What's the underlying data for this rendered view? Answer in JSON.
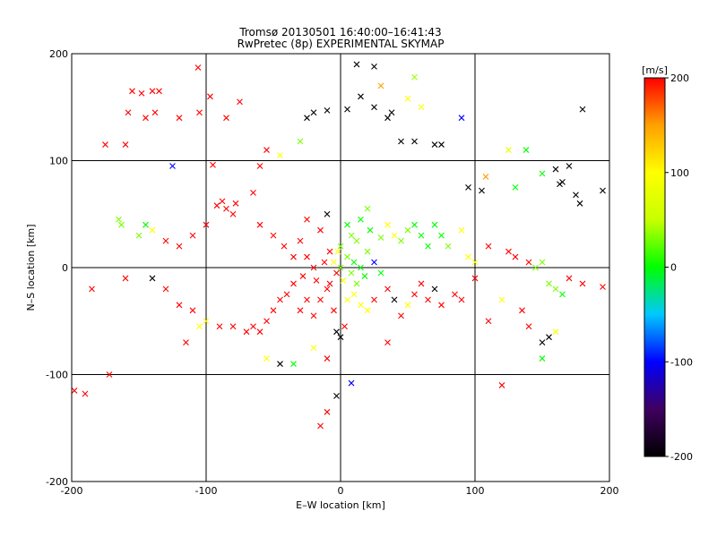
{
  "chart_data": {
    "type": "scatter",
    "title": "Tromsø 20130501 16:40:00–16:41:43",
    "subtitle": "RwPretec (8p) EXPERIMENTAL SKYMAP",
    "xlabel": "E–W location [km]",
    "ylabel": "N–S location [km]",
    "xlim": [
      -200,
      200
    ],
    "ylim": [
      -200,
      200
    ],
    "xticks": [
      -200,
      -100,
      0,
      100,
      200
    ],
    "yticks": [
      -200,
      -100,
      0,
      100,
      200
    ],
    "xtick_labels": [
      "-200",
      "-100",
      "0",
      "100",
      "200"
    ],
    "ytick_labels": [
      "-200",
      "-100",
      "0",
      "100",
      "200"
    ],
    "grid": true,
    "colorbar": {
      "label": "[m/s]",
      "min": -200,
      "max": 200,
      "ticks": [
        200,
        100,
        0,
        -100,
        -200
      ],
      "tick_labels": [
        "200",
        "100",
        "0",
        "-100",
        "-200"
      ],
      "colormap": [
        "#000000",
        "#400060",
        "#0000ff",
        "#00c8ff",
        "#00ff00",
        "#c8ff00",
        "#ffff00",
        "#ffa000",
        "#ff0000"
      ]
    },
    "markers": {
      "cross": "meteor detection (x)",
      "dot": "meteor detection (dot)"
    },
    "points": [
      {
        "x": -155,
        "y": 165,
        "v": 200,
        "m": "x"
      },
      {
        "x": -148,
        "y": 163,
        "v": 200,
        "m": "x"
      },
      {
        "x": -140,
        "y": 165,
        "v": 200,
        "m": "x"
      },
      {
        "x": -135,
        "y": 165,
        "v": 200,
        "m": "x"
      },
      {
        "x": -158,
        "y": 145,
        "v": 200,
        "m": "x"
      },
      {
        "x": -145,
        "y": 140,
        "v": 200,
        "m": "x"
      },
      {
        "x": -138,
        "y": 145,
        "v": 200,
        "m": "x"
      },
      {
        "x": -120,
        "y": 140,
        "v": 200,
        "m": "x"
      },
      {
        "x": -105,
        "y": 145,
        "v": 200,
        "m": "x"
      },
      {
        "x": -97,
        "y": 160,
        "v": 200,
        "m": "x"
      },
      {
        "x": -106,
        "y": 187,
        "v": 200,
        "m": "x"
      },
      {
        "x": -85,
        "y": 140,
        "v": 200,
        "m": "x"
      },
      {
        "x": -75,
        "y": 155,
        "v": 200,
        "m": "x"
      },
      {
        "x": -175,
        "y": 115,
        "v": 200,
        "m": "x"
      },
      {
        "x": -160,
        "y": 115,
        "v": 200,
        "m": "x"
      },
      {
        "x": -125,
        "y": 95,
        "v": -100,
        "m": "x"
      },
      {
        "x": -95,
        "y": 96,
        "v": 200,
        "m": "x"
      },
      {
        "x": -60,
        "y": 95,
        "v": 200,
        "m": "x"
      },
      {
        "x": -55,
        "y": 110,
        "v": 200,
        "m": "x"
      },
      {
        "x": -45,
        "y": 105,
        "v": 100,
        "m": "x"
      },
      {
        "x": -30,
        "y": 118,
        "v": 30,
        "m": "x"
      },
      {
        "x": -25,
        "y": 140,
        "v": -200,
        "m": "x"
      },
      {
        "x": -20,
        "y": 145,
        "v": -200,
        "m": "x"
      },
      {
        "x": -10,
        "y": 147,
        "v": -200,
        "m": "x"
      },
      {
        "x": 5,
        "y": 148,
        "v": -200,
        "m": "x"
      },
      {
        "x": 15,
        "y": 160,
        "v": -200,
        "m": "x"
      },
      {
        "x": 25,
        "y": 150,
        "v": -200,
        "m": "x"
      },
      {
        "x": 35,
        "y": 140,
        "v": -200,
        "m": "x"
      },
      {
        "x": 38,
        "y": 145,
        "v": -200,
        "m": "x"
      },
      {
        "x": 12,
        "y": 190,
        "v": -200,
        "m": "x"
      },
      {
        "x": 25,
        "y": 188,
        "v": -200,
        "m": "x"
      },
      {
        "x": 30,
        "y": 170,
        "v": 150,
        "m": "x"
      },
      {
        "x": 50,
        "y": 158,
        "v": 100,
        "m": "x"
      },
      {
        "x": 55,
        "y": 178,
        "v": 40,
        "m": "x"
      },
      {
        "x": 60,
        "y": 150,
        "v": 100,
        "m": "x"
      },
      {
        "x": 45,
        "y": 118,
        "v": -200,
        "m": "x"
      },
      {
        "x": 55,
        "y": 118,
        "v": -200,
        "m": "x"
      },
      {
        "x": 70,
        "y": 115,
        "v": -200,
        "m": "x"
      },
      {
        "x": 75,
        "y": 115,
        "v": -200,
        "m": "x"
      },
      {
        "x": 90,
        "y": 140,
        "v": -100,
        "m": "x"
      },
      {
        "x": 125,
        "y": 110,
        "v": 80,
        "m": "x"
      },
      {
        "x": 138,
        "y": 110,
        "v": 0,
        "m": "x"
      },
      {
        "x": 160,
        "y": 92,
        "v": -200,
        "m": "x"
      },
      {
        "x": 170,
        "y": 95,
        "v": -200,
        "m": "x"
      },
      {
        "x": 165,
        "y": 80,
        "v": -200,
        "m": "x"
      },
      {
        "x": 175,
        "y": 68,
        "v": -200,
        "m": "x"
      },
      {
        "x": 163,
        "y": 78,
        "v": -200,
        "m": "x"
      },
      {
        "x": 180,
        "y": 148,
        "v": -200,
        "m": "x"
      },
      {
        "x": 195,
        "y": 72,
        "v": -200,
        "m": "x"
      },
      {
        "x": 150,
        "y": 88,
        "v": 0,
        "m": "x"
      },
      {
        "x": 130,
        "y": 75,
        "v": 0,
        "m": "x"
      },
      {
        "x": 108,
        "y": 85,
        "v": 150,
        "m": "x"
      },
      {
        "x": 105,
        "y": 72,
        "v": -200,
        "m": "x"
      },
      {
        "x": 95,
        "y": 75,
        "v": -200,
        "m": "x"
      },
      {
        "x": 178,
        "y": 60,
        "v": -200,
        "m": "x"
      },
      {
        "x": -165,
        "y": 45,
        "v": 30,
        "m": "x"
      },
      {
        "x": -163,
        "y": 40,
        "v": 30,
        "m": "x"
      },
      {
        "x": -150,
        "y": 30,
        "v": 30,
        "m": "x"
      },
      {
        "x": -145,
        "y": 40,
        "v": 0,
        "m": "x"
      },
      {
        "x": -140,
        "y": 35,
        "v": 100,
        "m": "x"
      },
      {
        "x": -130,
        "y": 25,
        "v": 200,
        "m": "x"
      },
      {
        "x": -120,
        "y": 20,
        "v": 200,
        "m": "x"
      },
      {
        "x": -110,
        "y": 30,
        "v": 200,
        "m": "x"
      },
      {
        "x": -100,
        "y": 40,
        "v": 200,
        "m": "x"
      },
      {
        "x": -92,
        "y": 58,
        "v": 200,
        "m": "x"
      },
      {
        "x": -88,
        "y": 62,
        "v": 200,
        "m": "x"
      },
      {
        "x": -85,
        "y": 55,
        "v": 200,
        "m": "x"
      },
      {
        "x": -80,
        "y": 50,
        "v": 200,
        "m": "x"
      },
      {
        "x": -78,
        "y": 60,
        "v": 200,
        "m": "x"
      },
      {
        "x": -65,
        "y": 70,
        "v": 200,
        "m": "x"
      },
      {
        "x": -60,
        "y": 40,
        "v": 200,
        "m": "x"
      },
      {
        "x": -50,
        "y": 30,
        "v": 200,
        "m": "x"
      },
      {
        "x": -42,
        "y": 20,
        "v": 200,
        "m": "x"
      },
      {
        "x": -35,
        "y": 10,
        "v": 200,
        "m": "x"
      },
      {
        "x": -30,
        "y": 25,
        "v": 200,
        "m": "x"
      },
      {
        "x": -25,
        "y": 45,
        "v": 200,
        "m": "x"
      },
      {
        "x": -15,
        "y": 35,
        "v": 200,
        "m": "x"
      },
      {
        "x": -10,
        "y": 50,
        "v": -200,
        "m": "x"
      },
      {
        "x": -8,
        "y": 15,
        "v": 200,
        "m": "x"
      },
      {
        "x": -5,
        "y": 5,
        "v": 100,
        "m": "x"
      },
      {
        "x": -3,
        "y": -5,
        "v": 200,
        "m": "x"
      },
      {
        "x": 0,
        "y": 20,
        "v": 30,
        "m": "x"
      },
      {
        "x": 5,
        "y": 40,
        "v": 0,
        "m": "x"
      },
      {
        "x": 8,
        "y": 30,
        "v": 30,
        "m": "x"
      },
      {
        "x": 12,
        "y": 25,
        "v": 30,
        "m": "x"
      },
      {
        "x": 15,
        "y": 45,
        "v": 0,
        "m": "x"
      },
      {
        "x": 20,
        "y": 55,
        "v": 30,
        "m": "x"
      },
      {
        "x": 22,
        "y": 35,
        "v": 0,
        "m": "x"
      },
      {
        "x": 30,
        "y": 28,
        "v": 30,
        "m": "x"
      },
      {
        "x": 35,
        "y": 40,
        "v": 100,
        "m": "x"
      },
      {
        "x": 40,
        "y": 30,
        "v": 100,
        "m": "x"
      },
      {
        "x": 45,
        "y": 25,
        "v": 30,
        "m": "x"
      },
      {
        "x": 50,
        "y": 35,
        "v": 30,
        "m": "x"
      },
      {
        "x": 55,
        "y": 40,
        "v": 0,
        "m": "x"
      },
      {
        "x": 60,
        "y": 30,
        "v": 0,
        "m": "x"
      },
      {
        "x": 65,
        "y": 20,
        "v": 0,
        "m": "x"
      },
      {
        "x": 70,
        "y": 40,
        "v": 0,
        "m": "x"
      },
      {
        "x": 75,
        "y": 30,
        "v": 0,
        "m": "x"
      },
      {
        "x": 80,
        "y": 20,
        "v": 30,
        "m": "x"
      },
      {
        "x": 90,
        "y": 35,
        "v": 100,
        "m": "x"
      },
      {
        "x": 95,
        "y": 10,
        "v": 100,
        "m": "x"
      },
      {
        "x": 100,
        "y": 5,
        "v": 100,
        "m": "x"
      },
      {
        "x": 110,
        "y": 20,
        "v": 200,
        "m": "x"
      },
      {
        "x": 125,
        "y": 15,
        "v": 200,
        "m": "x"
      },
      {
        "x": 130,
        "y": 10,
        "v": 200,
        "m": "x"
      },
      {
        "x": 140,
        "y": 5,
        "v": 200,
        "m": "x"
      },
      {
        "x": 145,
        "y": 0,
        "v": 30,
        "m": "x"
      },
      {
        "x": 150,
        "y": 5,
        "v": 30,
        "m": "x"
      },
      {
        "x": 155,
        "y": -15,
        "v": 30,
        "m": "x"
      },
      {
        "x": 160,
        "y": -20,
        "v": 30,
        "m": "x"
      },
      {
        "x": 165,
        "y": -25,
        "v": 0,
        "m": "x"
      },
      {
        "x": 170,
        "y": -10,
        "v": 200,
        "m": "x"
      },
      {
        "x": 180,
        "y": -15,
        "v": 200,
        "m": "x"
      },
      {
        "x": 195,
        "y": -18,
        "v": 200,
        "m": "x"
      },
      {
        "x": -185,
        "y": -20,
        "v": 200,
        "m": "x"
      },
      {
        "x": -160,
        "y": -10,
        "v": 200,
        "m": "x"
      },
      {
        "x": -140,
        "y": -10,
        "v": -200,
        "m": "x"
      },
      {
        "x": -130,
        "y": -20,
        "v": 200,
        "m": "x"
      },
      {
        "x": -120,
        "y": -35,
        "v": 200,
        "m": "x"
      },
      {
        "x": -110,
        "y": -40,
        "v": 200,
        "m": "x"
      },
      {
        "x": -100,
        "y": -50,
        "v": 100,
        "m": "x"
      },
      {
        "x": -90,
        "y": -55,
        "v": 200,
        "m": "x"
      },
      {
        "x": -80,
        "y": -55,
        "v": 200,
        "m": "x"
      },
      {
        "x": -70,
        "y": -60,
        "v": 200,
        "m": "x"
      },
      {
        "x": -65,
        "y": -55,
        "v": 200,
        "m": "x"
      },
      {
        "x": -60,
        "y": -60,
        "v": 200,
        "m": "x"
      },
      {
        "x": -55,
        "y": -50,
        "v": 200,
        "m": "x"
      },
      {
        "x": -50,
        "y": -40,
        "v": 200,
        "m": "x"
      },
      {
        "x": -45,
        "y": -30,
        "v": 200,
        "m": "x"
      },
      {
        "x": -40,
        "y": -25,
        "v": 200,
        "m": "x"
      },
      {
        "x": -35,
        "y": -15,
        "v": 200,
        "m": "x"
      },
      {
        "x": -30,
        "y": -40,
        "v": 200,
        "m": "x"
      },
      {
        "x": -25,
        "y": -30,
        "v": 200,
        "m": "x"
      },
      {
        "x": -20,
        "y": -45,
        "v": 200,
        "m": "x"
      },
      {
        "x": -15,
        "y": -30,
        "v": 200,
        "m": "x"
      },
      {
        "x": -10,
        "y": -20,
        "v": 200,
        "m": "x"
      },
      {
        "x": -5,
        "y": -40,
        "v": 200,
        "m": "x"
      },
      {
        "x": -3,
        "y": -60,
        "v": -200,
        "m": "x"
      },
      {
        "x": 0,
        "y": -65,
        "v": -200,
        "m": "x"
      },
      {
        "x": 3,
        "y": -55,
        "v": 200,
        "m": "x"
      },
      {
        "x": 5,
        "y": -30,
        "v": 100,
        "m": "x"
      },
      {
        "x": 10,
        "y": -25,
        "v": 100,
        "m": "x"
      },
      {
        "x": 15,
        "y": -35,
        "v": 100,
        "m": "x"
      },
      {
        "x": 20,
        "y": -40,
        "v": 100,
        "m": "x"
      },
      {
        "x": 25,
        "y": -30,
        "v": 200,
        "m": "x"
      },
      {
        "x": 35,
        "y": -20,
        "v": 200,
        "m": "x"
      },
      {
        "x": 40,
        "y": -30,
        "v": -200,
        "m": "x"
      },
      {
        "x": 45,
        "y": -45,
        "v": 200,
        "m": "x"
      },
      {
        "x": 50,
        "y": -35,
        "v": 100,
        "m": "x"
      },
      {
        "x": 55,
        "y": -25,
        "v": 200,
        "m": "x"
      },
      {
        "x": 60,
        "y": -15,
        "v": 200,
        "m": "x"
      },
      {
        "x": 65,
        "y": -30,
        "v": 200,
        "m": "x"
      },
      {
        "x": 70,
        "y": -20,
        "v": -200,
        "m": "x"
      },
      {
        "x": 75,
        "y": -35,
        "v": 200,
        "m": "x"
      },
      {
        "x": 85,
        "y": -25,
        "v": 200,
        "m": "x"
      },
      {
        "x": 90,
        "y": -30,
        "v": 200,
        "m": "x"
      },
      {
        "x": 100,
        "y": -10,
        "v": 200,
        "m": "x"
      },
      {
        "x": 110,
        "y": -50,
        "v": 200,
        "m": "x"
      },
      {
        "x": 120,
        "y": -30,
        "v": 100,
        "m": "x"
      },
      {
        "x": 135,
        "y": -40,
        "v": 200,
        "m": "x"
      },
      {
        "x": 140,
        "y": -55,
        "v": 200,
        "m": "x"
      },
      {
        "x": 150,
        "y": -70,
        "v": -200,
        "m": "x"
      },
      {
        "x": 155,
        "y": -65,
        "v": -200,
        "m": "x"
      },
      {
        "x": 160,
        "y": -60,
        "v": 100,
        "m": "x"
      },
      {
        "x": 150,
        "y": -85,
        "v": 0,
        "m": "x"
      },
      {
        "x": 120,
        "y": -110,
        "v": 200,
        "m": "x"
      },
      {
        "x": -105,
        "y": -55,
        "v": 100,
        "m": "x"
      },
      {
        "x": -115,
        "y": -70,
        "v": 200,
        "m": "x"
      },
      {
        "x": -55,
        "y": -85,
        "v": 100,
        "m": "x"
      },
      {
        "x": -45,
        "y": -90,
        "v": -200,
        "m": "x"
      },
      {
        "x": -35,
        "y": -90,
        "v": 0,
        "m": "x"
      },
      {
        "x": -20,
        "y": -75,
        "v": 100,
        "m": "x"
      },
      {
        "x": -10,
        "y": -85,
        "v": 200,
        "m": "x"
      },
      {
        "x": 35,
        "y": -70,
        "v": 200,
        "m": "x"
      },
      {
        "x": 8,
        "y": -108,
        "v": -100,
        "m": "x"
      },
      {
        "x": -3,
        "y": -120,
        "v": -200,
        "m": "x"
      },
      {
        "x": -10,
        "y": -135,
        "v": 200,
        "m": "x"
      },
      {
        "x": -15,
        "y": -148,
        "v": 200,
        "m": "x"
      },
      {
        "x": -172,
        "y": -100,
        "v": 200,
        "m": "x"
      },
      {
        "x": -190,
        "y": -118,
        "v": 200,
        "m": "x"
      },
      {
        "x": -198,
        "y": -115,
        "v": 200,
        "m": "x"
      },
      {
        "x": 0,
        "y": 0,
        "v": 30,
        "m": "x"
      },
      {
        "x": 5,
        "y": 10,
        "v": 30,
        "m": "x"
      },
      {
        "x": 10,
        "y": 5,
        "v": 0,
        "m": "x"
      },
      {
        "x": -2,
        "y": 15,
        "v": 100,
        "m": "x"
      },
      {
        "x": 8,
        "y": -5,
        "v": 30,
        "m": "x"
      },
      {
        "x": 15,
        "y": 0,
        "v": 0,
        "m": "x"
      },
      {
        "x": -12,
        "y": 5,
        "v": 200,
        "m": "x"
      },
      {
        "x": 20,
        "y": 15,
        "v": 30,
        "m": "x"
      },
      {
        "x": 25,
        "y": 5,
        "v": -100,
        "m": "x"
      },
      {
        "x": 30,
        "y": -5,
        "v": 0,
        "m": "x"
      },
      {
        "x": -20,
        "y": 0,
        "v": 200,
        "m": "x"
      },
      {
        "x": -25,
        "y": 10,
        "v": 200,
        "m": "x"
      },
      {
        "x": -28,
        "y": -8,
        "v": 200,
        "m": "x"
      },
      {
        "x": -18,
        "y": -12,
        "v": 200,
        "m": "x"
      },
      {
        "x": -8,
        "y": -15,
        "v": 200,
        "m": "x"
      },
      {
        "x": 2,
        "y": -12,
        "v": 100,
        "m": "x"
      },
      {
        "x": 12,
        "y": -15,
        "v": 30,
        "m": "x"
      },
      {
        "x": 18,
        "y": -8,
        "v": 0,
        "m": "x"
      }
    ]
  }
}
